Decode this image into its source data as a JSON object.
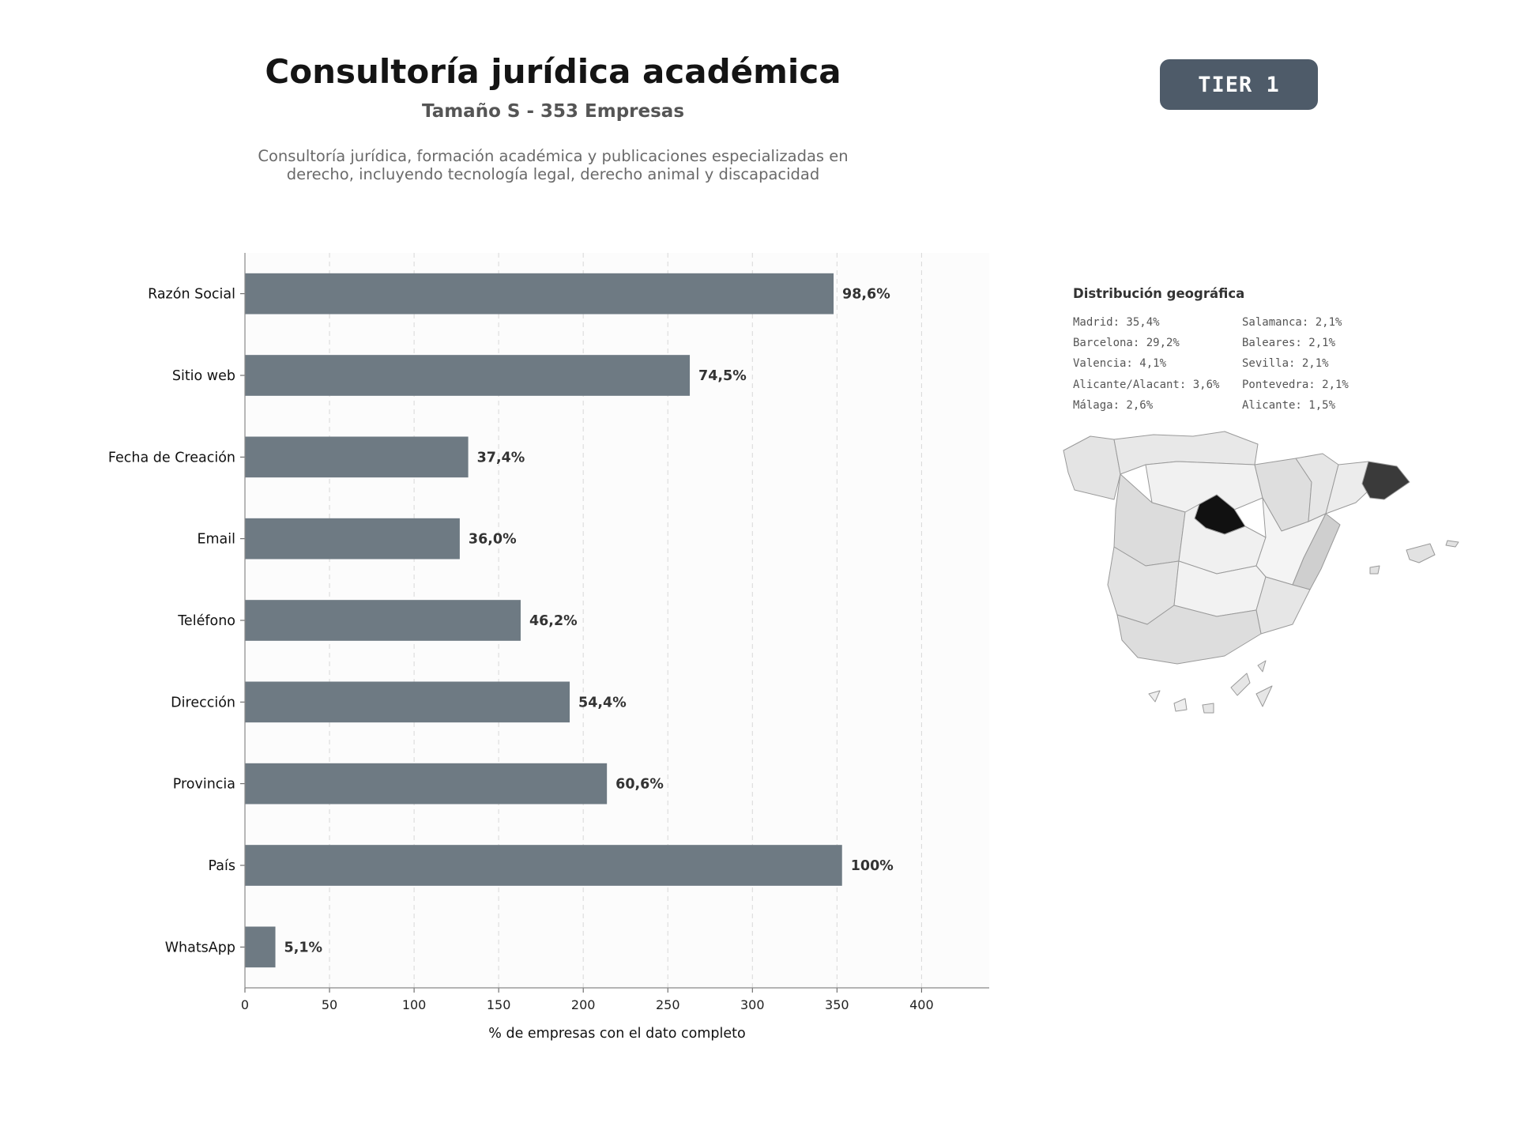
{
  "header": {
    "title": "Consultoría jurídica académica",
    "subtitle": "Tamaño S - 353 Empresas",
    "description": "Consultoría jurídica, formación académica y publicaciones especializadas en derecho, incluyendo tecnología legal, derecho animal y discapacidad",
    "tier_label": "TIER 1"
  },
  "chart_data": {
    "type": "bar",
    "orientation": "horizontal",
    "title": "",
    "xlabel": "% de empresas con el dato completo",
    "ylabel": "",
    "xlim": [
      0,
      440
    ],
    "xticks": [
      0,
      50,
      100,
      150,
      200,
      250,
      300,
      350,
      400
    ],
    "grid": "vertical-dashed",
    "categories": [
      "Razón Social",
      "Sitio web",
      "Fecha de Creación",
      "Email",
      "Teléfono",
      "Dirección",
      "Provincia",
      "País",
      "WhatsApp"
    ],
    "values": [
      348,
      263,
      132,
      127,
      163,
      192,
      214,
      353,
      18
    ],
    "data_labels": [
      "98,6%",
      "74,5%",
      "37,4%",
      "36,0%",
      "46,2%",
      "54,4%",
      "60,6%",
      "100%",
      "5,1%"
    ],
    "bar_color": "#6e7a83"
  },
  "geo": {
    "title": "Distribución geográfica",
    "col1": [
      "Madrid: 35,4%",
      "Barcelona: 29,2%",
      "Valencia: 4,1%",
      "Alicante/Alacant: 3,6%",
      "Málaga: 2,6%"
    ],
    "col2": [
      "Salamanca: 2,1%",
      "Baleares: 2,1%",
      "Sevilla: 2,1%",
      "Pontevedra: 2,1%",
      "Alicante: 1,5%"
    ]
  },
  "colors": {
    "tier_badge": "#4e5b69",
    "map_high": "#111111",
    "map_second": "#3a3a3a",
    "map_mid": "#d4d4d4",
    "map_low": "#eeeeee"
  }
}
